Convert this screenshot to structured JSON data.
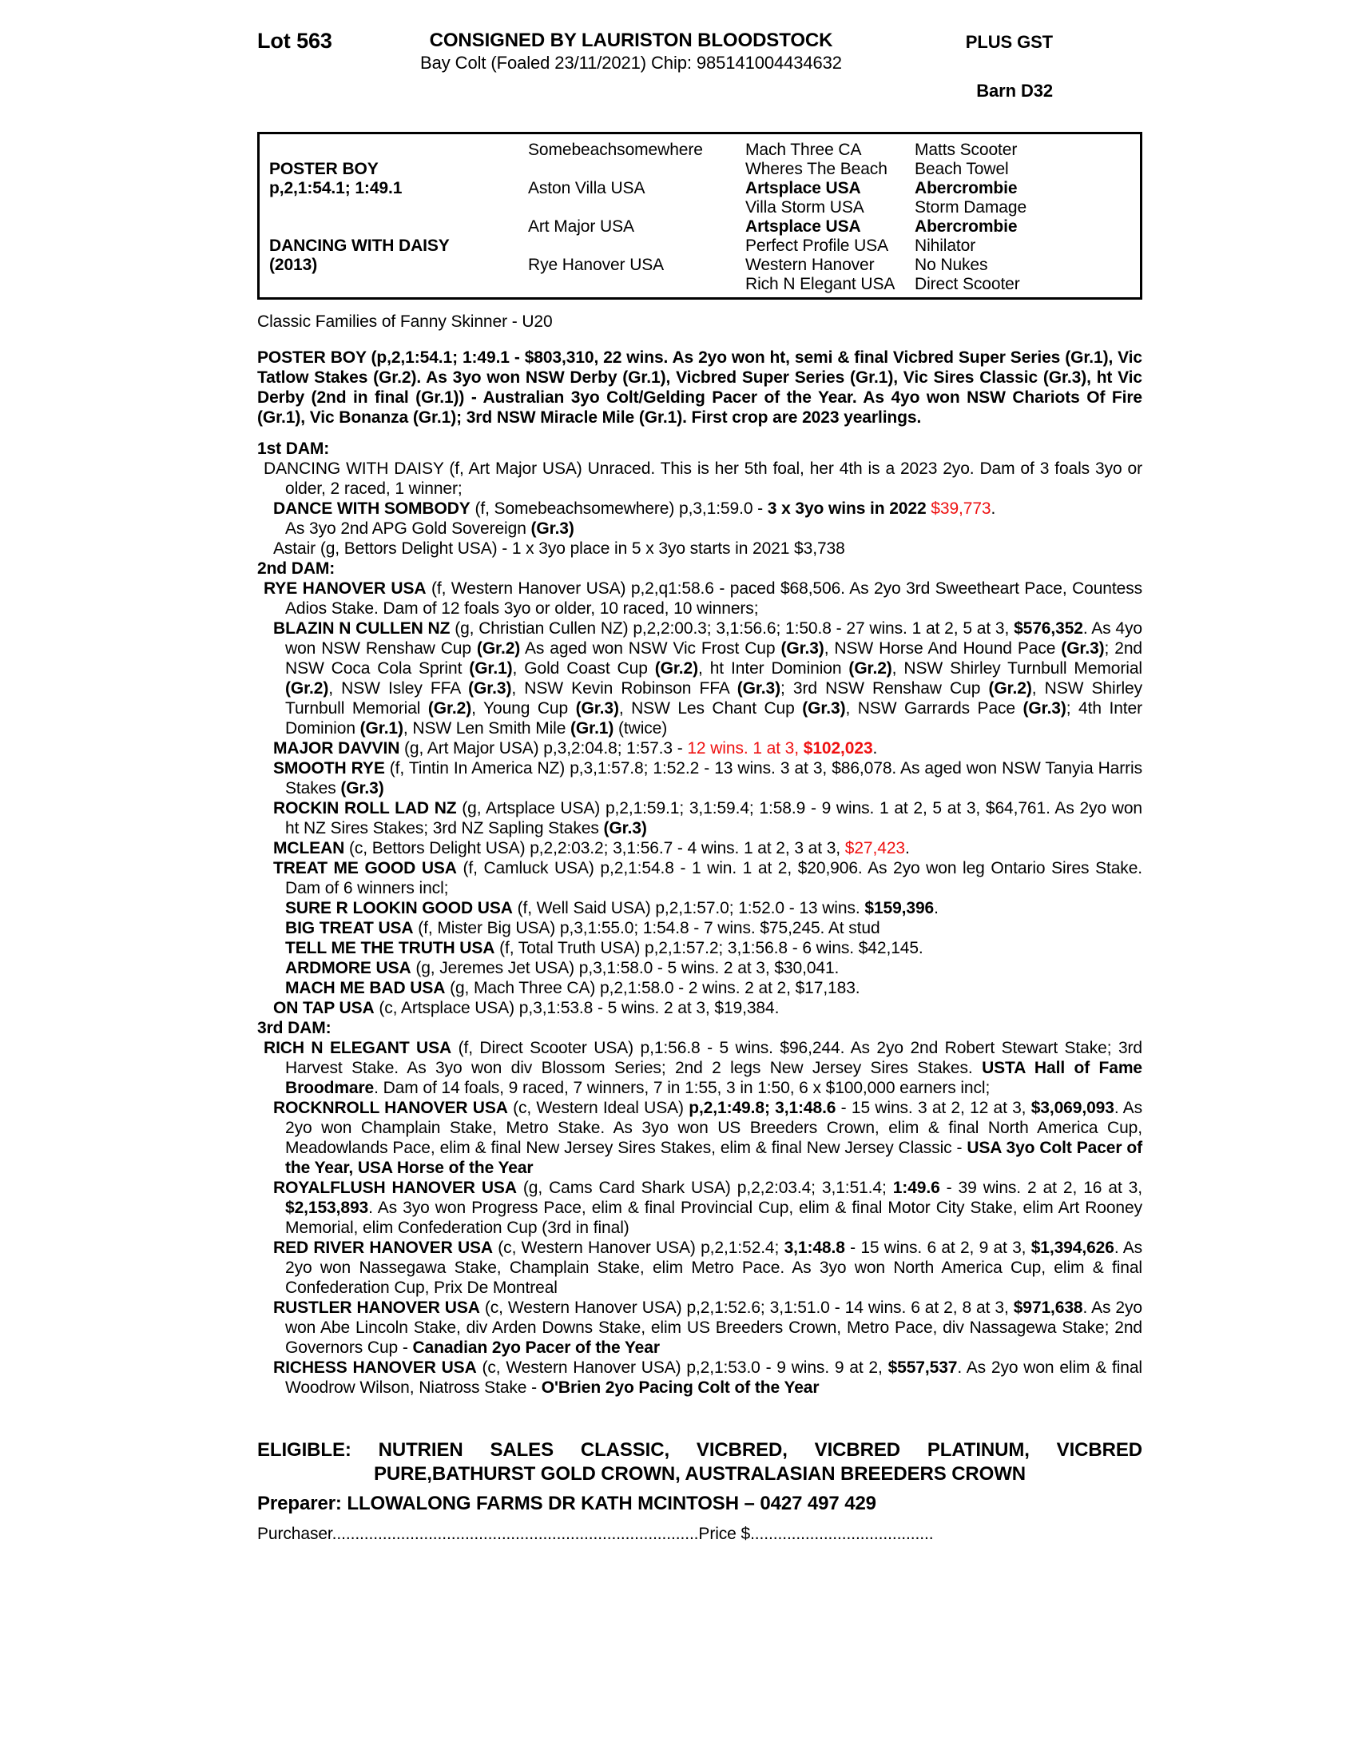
{
  "header": {
    "lot": "Lot 563",
    "consigned": "CONSIGNED BY LAURISTON BLOODSTOCK",
    "subtitle": "Bay Colt (Foaled 23/11/2021) Chip: 985141004434632",
    "plus_gst": "PLUS GST",
    "barn": "Barn D32"
  },
  "pedigree": {
    "rows": [
      [
        {
          "t": "",
          "b": false
        },
        {
          "t": "Somebeachsomewhere",
          "b": false
        },
        {
          "t": "Mach Three CA",
          "b": false
        },
        {
          "t": "Matts Scooter",
          "b": false
        }
      ],
      [
        {
          "t": "POSTER BOY",
          "b": true
        },
        {
          "t": "",
          "b": false
        },
        {
          "t": "Wheres The Beach",
          "b": false
        },
        {
          "t": "Beach Towel",
          "b": false
        }
      ],
      [
        {
          "t": "p,2,1:54.1; 1:49.1",
          "b": true
        },
        {
          "t": "Aston Villa USA",
          "b": false
        },
        {
          "t": "Artsplace USA",
          "b": true
        },
        {
          "t": "Abercrombie",
          "b": true
        }
      ],
      [
        {
          "t": "",
          "b": false
        },
        {
          "t": "",
          "b": false
        },
        {
          "t": "Villa Storm USA",
          "b": false
        },
        {
          "t": "Storm Damage",
          "b": false
        }
      ],
      [
        {
          "t": "",
          "b": false
        },
        {
          "t": "Art Major USA",
          "b": false
        },
        {
          "t": "Artsplace USA",
          "b": true
        },
        {
          "t": "Abercrombie",
          "b": true
        }
      ],
      [
        {
          "t": "DANCING WITH DAISY",
          "b": true
        },
        {
          "t": "",
          "b": false
        },
        {
          "t": "Perfect Profile USA",
          "b": false
        },
        {
          "t": "Nihilator",
          "b": false
        }
      ],
      [
        {
          "t": "(2013)",
          "b": true
        },
        {
          "t": "Rye Hanover USA",
          "b": false
        },
        {
          "t": "Western Hanover",
          "b": false
        },
        {
          "t": "No Nukes",
          "b": false
        }
      ],
      [
        {
          "t": "",
          "b": false
        },
        {
          "t": "",
          "b": false
        },
        {
          "t": "Rich N Elegant USA",
          "b": false
        },
        {
          "t": "Direct Scooter",
          "b": false
        }
      ]
    ]
  },
  "body": [
    {
      "name": "classic-families-line",
      "cls": "p classic",
      "segs": [
        {
          "t": "Classic Families of Fanny Skinner - U20",
          "s": ""
        }
      ]
    },
    {
      "name": "para-poster-boy",
      "cls": "p lvl0",
      "segs": [
        {
          "t": "POSTER BOY (p,2,1:54.1; 1:49.1 - $803,310, 22 wins. As 2yo won ht, semi & final Vicbred Super Series (Gr.1), Vic Tatlow Stakes (Gr.2). As 3yo won NSW Derby (Gr.1), Vicbred Super Series (Gr.1), Vic Sires Classic (Gr.3), ht Vic Derby (2nd in final (Gr.1)) - Australian 3yo Colt/Gelding Pacer of the Year. As 4yo won NSW Chariots Of Fire (Gr.1), Vic Bonanza (Gr.1); 3rd NSW Miracle Mile (Gr.1). First crop are 2023 yearlings.",
          "s": "b"
        }
      ]
    },
    {
      "name": "heading-1st-dam",
      "cls": "h gap-top",
      "segs": [
        {
          "t": "1st DAM:",
          "s": "b"
        }
      ]
    },
    {
      "name": "para-dancing-with-daisy",
      "cls": "p lvlA",
      "segs": [
        {
          "t": "DANCING WITH DAISY (f, Art Major USA) Unraced. This is her 5th foal, her 4th is a 2023 2yo. Dam of 3 foals 3yo or older, 2 raced, 1 winner;",
          "s": ""
        }
      ]
    },
    {
      "name": "para-dance-with-sombody",
      "cls": "p lvlB",
      "segs": [
        {
          "t": "DANCE WITH SOMBODY",
          "s": "b"
        },
        {
          "t": " (f, Somebeachsomewhere) p,3,1:59.0 - ",
          "s": ""
        },
        {
          "t": "3 x 3yo wins in 2022",
          "s": "b"
        },
        {
          "t": " ",
          "s": ""
        },
        {
          "t": "$39,773",
          "s": "r"
        },
        {
          "t": ".",
          "s": ""
        },
        {
          "t": "",
          "s": "nl"
        },
        {
          "t": "As 3yo 2nd APG Gold Sovereign ",
          "s": ""
        },
        {
          "t": "(Gr.3)",
          "s": "b"
        }
      ]
    },
    {
      "name": "para-astair",
      "cls": "p lvlB",
      "segs": [
        {
          "t": "Astair (g, Bettors Delight USA) - 1 x 3yo place in 5 x 3yo starts in 2021 $3,738",
          "s": ""
        }
      ]
    },
    {
      "name": "heading-2nd-dam",
      "cls": "h",
      "segs": [
        {
          "t": "2nd DAM:",
          "s": "b"
        }
      ]
    },
    {
      "name": "para-rye-hanover",
      "cls": "p lvlA",
      "segs": [
        {
          "t": "RYE HANOVER USA",
          "s": "b"
        },
        {
          "t": " (f, Western Hanover USA) p,2,q1:58.6 - paced $68,506. As 2yo 3rd Sweetheart Pace, Countess Adios Stake. Dam of 12 foals 3yo or older, 10 raced, 10 winners;",
          "s": ""
        }
      ]
    },
    {
      "name": "para-blazin-n-cullen",
      "cls": "p lvlB",
      "segs": [
        {
          "t": "BLAZIN N CULLEN NZ",
          "s": "b"
        },
        {
          "t": " (g, Christian Cullen NZ) p,2,2:00.3; 3,1:56.6; 1:50.8 - 27 wins. 1 at 2, 5 at 3, ",
          "s": ""
        },
        {
          "t": "$576,352",
          "s": "b"
        },
        {
          "t": ". As 4yo won NSW Renshaw Cup ",
          "s": ""
        },
        {
          "t": "(Gr.2)",
          "s": "b"
        },
        {
          "t": " As aged won NSW Vic Frost Cup ",
          "s": ""
        },
        {
          "t": "(Gr.3)",
          "s": "b"
        },
        {
          "t": ", NSW Horse And Hound Pace ",
          "s": ""
        },
        {
          "t": "(Gr.3)",
          "s": "b"
        },
        {
          "t": "; 2nd NSW Coca Cola Sprint ",
          "s": ""
        },
        {
          "t": "(Gr.1)",
          "s": "b"
        },
        {
          "t": ", Gold Coast Cup ",
          "s": ""
        },
        {
          "t": "(Gr.2)",
          "s": "b"
        },
        {
          "t": ", ht Inter Dominion ",
          "s": ""
        },
        {
          "t": "(Gr.2)",
          "s": "b"
        },
        {
          "t": ", NSW Shirley Turnbull Memorial ",
          "s": ""
        },
        {
          "t": "(Gr.2)",
          "s": "b"
        },
        {
          "t": ", NSW Isley FFA ",
          "s": ""
        },
        {
          "t": "(Gr.3)",
          "s": "b"
        },
        {
          "t": ", NSW Kevin Robinson FFA ",
          "s": ""
        },
        {
          "t": "(Gr.3)",
          "s": "b"
        },
        {
          "t": "; 3rd NSW Renshaw Cup ",
          "s": ""
        },
        {
          "t": "(Gr.2)",
          "s": "b"
        },
        {
          "t": ", NSW Shirley Turnbull Memorial ",
          "s": ""
        },
        {
          "t": "(Gr.2)",
          "s": "b"
        },
        {
          "t": ", Young Cup ",
          "s": ""
        },
        {
          "t": "(Gr.3)",
          "s": "b"
        },
        {
          "t": ", NSW Les Chant Cup ",
          "s": ""
        },
        {
          "t": "(Gr.3)",
          "s": "b"
        },
        {
          "t": ", NSW Garrards Pace ",
          "s": ""
        },
        {
          "t": "(Gr.3)",
          "s": "b"
        },
        {
          "t": "; 4th Inter Dominion ",
          "s": ""
        },
        {
          "t": "(Gr.1)",
          "s": "b"
        },
        {
          "t": ", NSW Len Smith Mile ",
          "s": ""
        },
        {
          "t": "(Gr.1)",
          "s": "b"
        },
        {
          "t": " (twice)",
          "s": ""
        }
      ]
    },
    {
      "name": "para-major-davvin",
      "cls": "p lvlB",
      "segs": [
        {
          "t": "MAJOR DAVVIN",
          "s": "b"
        },
        {
          "t": " (g, Art Major USA) p,3,2:04.8; 1:57.3 - ",
          "s": ""
        },
        {
          "t": "12 wins. 1 at 3, ",
          "s": "r"
        },
        {
          "t": "$102,023",
          "s": "br"
        },
        {
          "t": ".",
          "s": ""
        }
      ]
    },
    {
      "name": "para-smooth-rye",
      "cls": "p lvlB",
      "segs": [
        {
          "t": "SMOOTH RYE",
          "s": "b"
        },
        {
          "t": " (f, Tintin In America NZ) p,3,1:57.8; 1:52.2 - 13 wins. 3 at 3, $86,078. As aged won NSW Tanyia Harris Stakes ",
          "s": ""
        },
        {
          "t": "(Gr.3)",
          "s": "b"
        }
      ]
    },
    {
      "name": "para-rockin-roll-lad",
      "cls": "p lvlB",
      "segs": [
        {
          "t": "ROCKIN ROLL LAD NZ",
          "s": "b"
        },
        {
          "t": " (g, Artsplace USA) p,2,1:59.1; 3,1:59.4; 1:58.9 - 9 wins. 1 at 2, 5 at 3, $64,761. As 2yo won ht NZ Sires Stakes; 3rd NZ Sapling Stakes ",
          "s": ""
        },
        {
          "t": "(Gr.3)",
          "s": "b"
        }
      ]
    },
    {
      "name": "para-mclean",
      "cls": "p lvlB",
      "segs": [
        {
          "t": "MCLEAN",
          "s": "b"
        },
        {
          "t": " (c, Bettors Delight USA) p,2,2:03.2; 3,1:56.7 - 4 wins. 1 at 2, 3 at 3, ",
          "s": ""
        },
        {
          "t": "$27,423",
          "s": "r"
        },
        {
          "t": ".",
          "s": ""
        }
      ]
    },
    {
      "name": "para-treat-me-good",
      "cls": "p lvlB",
      "segs": [
        {
          "t": "TREAT ME GOOD USA",
          "s": "b"
        },
        {
          "t": " (f, Camluck USA) p,2,1:54.8 - 1 win. 1 at 2, $20,906. As 2yo won leg Ontario Sires Stake. Dam of 6 winners incl;",
          "s": ""
        }
      ]
    },
    {
      "name": "para-sure-r-lookin-good",
      "cls": "p lvlC",
      "segs": [
        {
          "t": "SURE R LOOKIN GOOD USA",
          "s": "b"
        },
        {
          "t": " (f, Well Said USA) p,2,1:57.0; 1:52.0 - 13 wins. ",
          "s": ""
        },
        {
          "t": "$159,396",
          "s": "b"
        },
        {
          "t": ".",
          "s": ""
        }
      ]
    },
    {
      "name": "para-big-treat",
      "cls": "p lvlC",
      "segs": [
        {
          "t": "BIG TREAT USA",
          "s": "b"
        },
        {
          "t": " (f, Mister Big USA) p,3,1:55.0; 1:54.8 - 7 wins. $75,245. At stud",
          "s": ""
        }
      ]
    },
    {
      "name": "para-tell-me-the-truth",
      "cls": "p lvlC",
      "segs": [
        {
          "t": "TELL ME THE TRUTH USA",
          "s": "b"
        },
        {
          "t": " (f, Total Truth USA) p,2,1:57.2; 3,1:56.8 - 6 wins. $42,145.",
          "s": ""
        }
      ]
    },
    {
      "name": "para-ardmore",
      "cls": "p lvlC",
      "segs": [
        {
          "t": "ARDMORE USA",
          "s": "b"
        },
        {
          "t": " (g, Jeremes Jet USA) p,3,1:58.0 - 5 wins. 2 at 3, $30,041.",
          "s": ""
        }
      ]
    },
    {
      "name": "para-mach-me-bad",
      "cls": "p lvlC",
      "segs": [
        {
          "t": "MACH ME BAD USA",
          "s": "b"
        },
        {
          "t": " (g, Mach Three CA) p,2,1:58.0 - 2 wins. 2 at 2, $17,183.",
          "s": ""
        }
      ]
    },
    {
      "name": "para-on-tap",
      "cls": "p lvlB",
      "segs": [
        {
          "t": "ON TAP USA",
          "s": "b"
        },
        {
          "t": " (c, Artsplace USA) p,3,1:53.8 - 5 wins. 2 at 3, $19,384.",
          "s": ""
        }
      ]
    },
    {
      "name": "heading-3rd-dam",
      "cls": "h",
      "segs": [
        {
          "t": "3rd DAM:",
          "s": "b"
        }
      ]
    },
    {
      "name": "para-rich-n-elegant",
      "cls": "p lvlA",
      "segs": [
        {
          "t": "RICH N ELEGANT USA",
          "s": "b"
        },
        {
          "t": " (f, Direct Scooter USA) p,1:56.8 - 5 wins. $96,244. As 2yo 2nd Robert Stewart Stake; 3rd Harvest Stake. As 3yo won div Blossom Series; 2nd 2 legs New Jersey Sires Stakes. ",
          "s": ""
        },
        {
          "t": "USTA Hall of Fame Broodmare",
          "s": "b"
        },
        {
          "t": ". Dam of 14 foals, 9 raced, 7 winners, 7 in 1:55, 3 in 1:50, 6 x $100,000 earners incl;",
          "s": ""
        }
      ]
    },
    {
      "name": "para-rocknroll-hanover",
      "cls": "p lvlB",
      "segs": [
        {
          "t": "ROCKNROLL HANOVER USA",
          "s": "b"
        },
        {
          "t": " (c, Western Ideal USA) ",
          "s": ""
        },
        {
          "t": "p,2,1:49.8; 3,1:48.6",
          "s": "b"
        },
        {
          "t": " - 15 wins. 3 at 2, 12 at 3, ",
          "s": ""
        },
        {
          "t": "$3,069,093",
          "s": "b"
        },
        {
          "t": ". As 2yo won Champlain Stake, Metro Stake. As 3yo won US Breeders Crown, elim & final North America Cup, Meadowlands Pace, elim & final New Jersey Sires Stakes, elim & final New Jersey Classic - ",
          "s": ""
        },
        {
          "t": "USA 3yo Colt Pacer of the Year, USA Horse of the Year",
          "s": "b"
        }
      ]
    },
    {
      "name": "para-royalflush-hanover",
      "cls": "p lvlB",
      "segs": [
        {
          "t": "ROYALFLUSH HANOVER USA",
          "s": "b"
        },
        {
          "t": " (g, Cams Card Shark USA) p,2,2:03.4; 3,1:51.4; ",
          "s": ""
        },
        {
          "t": "1:49.6",
          "s": "b"
        },
        {
          "t": " - 39 wins. 2 at 2, 16 at 3, ",
          "s": ""
        },
        {
          "t": "$2,153,893",
          "s": "b"
        },
        {
          "t": ". As 3yo won Progress Pace, elim & final Provincial Cup, elim & final Motor City Stake, elim Art Rooney Memorial, elim Confederation Cup (3rd in final)",
          "s": ""
        }
      ]
    },
    {
      "name": "para-red-river-hanover",
      "cls": "p lvlB",
      "segs": [
        {
          "t": "RED RIVER HANOVER USA",
          "s": "b"
        },
        {
          "t": " (c, Western Hanover USA) p,2,1:52.4; ",
          "s": ""
        },
        {
          "t": "3,1:48.8",
          "s": "b"
        },
        {
          "t": " - 15 wins. 6 at 2, 9 at 3, ",
          "s": ""
        },
        {
          "t": "$1,394,626",
          "s": "b"
        },
        {
          "t": ". As 2yo won Nassegawa Stake, Champlain Stake, elim Metro Pace. As 3yo won North America Cup, elim & final Confederation Cup, Prix De Montreal",
          "s": ""
        }
      ]
    },
    {
      "name": "para-rustler-hanover",
      "cls": "p lvlB",
      "segs": [
        {
          "t": "RUSTLER HANOVER USA",
          "s": "b"
        },
        {
          "t": " (c, Western Hanover USA) p,2,1:52.6; 3,1:51.0 - 14 wins. 6 at 2, 8 at 3, ",
          "s": ""
        },
        {
          "t": "$971,638",
          "s": "b"
        },
        {
          "t": ". As 2yo won Abe Lincoln Stake, div Arden Downs Stake, elim US Breeders Crown, Metro Pace, div Nassagewa Stake; 2nd Governors Cup - ",
          "s": ""
        },
        {
          "t": "Canadian 2yo Pacer of the Year",
          "s": "b"
        }
      ]
    },
    {
      "name": "para-richess-hanover",
      "cls": "p lvlB",
      "segs": [
        {
          "t": "RICHESS HANOVER USA",
          "s": "b"
        },
        {
          "t": " (c, Western Hanover USA) p,2,1:53.0 - 9 wins. 9 at 2, ",
          "s": ""
        },
        {
          "t": "$557,537",
          "s": "b"
        },
        {
          "t": ". As 2yo won elim & final Woodrow Wilson, Niatross Stake - ",
          "s": ""
        },
        {
          "t": "O'Brien 2yo Pacing Colt of the Year",
          "s": "b"
        }
      ]
    }
  ],
  "footer": {
    "eligible_line1": "ELIGIBLE: NUTRIEN SALES CLASSIC, VICBRED, VICBRED PLATINUM, VICBRED",
    "eligible_line2": "PURE,BATHURST GOLD CROWN, AUSTRALASIAN BREEDERS CROWN",
    "preparer": "Preparer: LLOWALONG FARMS DR KATH MCINTOSH – 0427 497 429",
    "purchaser": "Purchaser................................................................................Price $........................................"
  },
  "colors": {
    "highlight_red": "#ee1111",
    "text": "#000000"
  }
}
